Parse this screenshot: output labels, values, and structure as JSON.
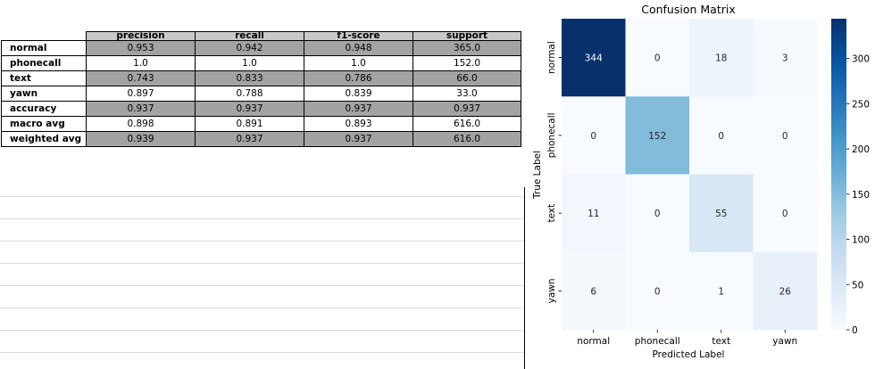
{
  "report": {
    "headers": [
      "precision",
      "recall",
      "f1-score",
      "support"
    ],
    "rows": [
      {
        "label": "normal",
        "values": [
          "0.953",
          "0.942",
          "0.948",
          "365.0"
        ]
      },
      {
        "label": "phonecall",
        "values": [
          "1.0",
          "1.0",
          "1.0",
          "152.0"
        ]
      },
      {
        "label": "text",
        "values": [
          "0.743",
          "0.833",
          "0.786",
          "66.0"
        ]
      },
      {
        "label": "yawn",
        "values": [
          "0.897",
          "0.788",
          "0.839",
          "33.0"
        ]
      },
      {
        "label": "accuracy",
        "values": [
          "0.937",
          "0.937",
          "0.937",
          "0.937"
        ]
      },
      {
        "label": "macro avg",
        "values": [
          "0.898",
          "0.891",
          "0.893",
          "616.0"
        ]
      },
      {
        "label": "weighted avg",
        "values": [
          "0.939",
          "0.937",
          "0.937",
          "616.0"
        ]
      }
    ]
  },
  "chart_data": {
    "type": "heatmap",
    "title": "Confusion Matrix",
    "xlabel": "Predicted Label",
    "ylabel": "True Label",
    "x_categories": [
      "normal",
      "phonecall",
      "text",
      "yawn"
    ],
    "y_categories": [
      "normal",
      "phonecall",
      "text",
      "yawn"
    ],
    "values": [
      [
        344,
        0,
        18,
        3
      ],
      [
        0,
        152,
        0,
        0
      ],
      [
        11,
        0,
        55,
        0
      ],
      [
        6,
        0,
        1,
        26
      ]
    ],
    "colormap": "Blues",
    "colorbar_ticks": [
      0,
      50,
      100,
      150,
      200,
      250,
      300
    ],
    "colorbar_range": [
      0,
      344
    ]
  }
}
